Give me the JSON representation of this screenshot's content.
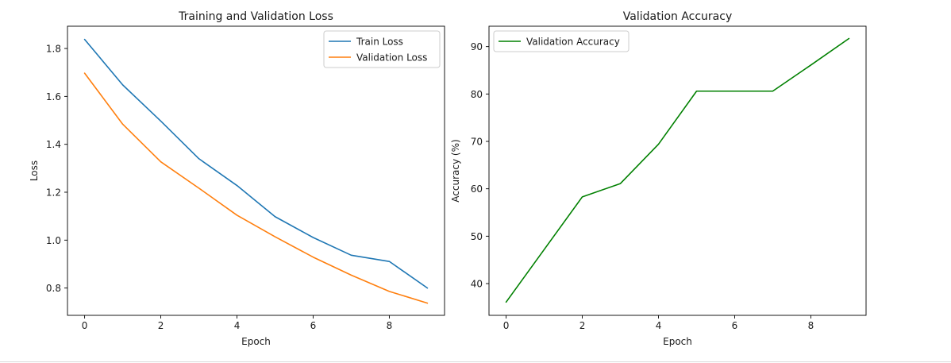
{
  "chart_data": [
    {
      "type": "line",
      "title": "Training and Validation Loss",
      "xlabel": "Epoch",
      "ylabel": "Loss",
      "xlim": [
        -0.45,
        9.45
      ],
      "ylim": [
        0.686,
        1.893
      ],
      "xticks": [
        0,
        2,
        4,
        6,
        8
      ],
      "yticks": [
        0.8,
        1.0,
        1.2,
        1.4,
        1.6,
        1.8
      ],
      "ytick_labels": [
        "0.8",
        "1.0",
        "1.2",
        "1.4",
        "1.6",
        "1.8"
      ],
      "grid": false,
      "legend": "top-right",
      "x": [
        0,
        1,
        2,
        3,
        4,
        5,
        6,
        7,
        8,
        9
      ],
      "series": [
        {
          "name": "Train Loss",
          "color": "#1f77b4",
          "values": [
            1.838,
            1.648,
            1.497,
            1.34,
            1.228,
            1.098,
            1.011,
            0.937,
            0.911,
            0.8
          ]
        },
        {
          "name": "Validation Loss",
          "color": "#ff7f0e",
          "values": [
            1.697,
            1.484,
            1.327,
            1.217,
            1.104,
            1.014,
            0.929,
            0.854,
            0.786,
            0.737
          ]
        }
      ]
    },
    {
      "type": "line",
      "title": "Validation Accuracy",
      "xlabel": "Epoch",
      "ylabel": "Accuracy (%)",
      "xlim": [
        -0.45,
        9.45
      ],
      "ylim": [
        33.3,
        94.3
      ],
      "xticks": [
        0,
        2,
        4,
        6,
        8
      ],
      "yticks": [
        40,
        50,
        60,
        70,
        80,
        90
      ],
      "ytick_labels": [
        "40",
        "50",
        "60",
        "70",
        "80",
        "90"
      ],
      "grid": false,
      "legend": "top-left",
      "x": [
        0,
        1,
        2,
        3,
        4,
        5,
        6,
        7,
        8,
        9
      ],
      "series": [
        {
          "name": "Validation Accuracy",
          "color": "#008000",
          "values": [
            36.1,
            47.2,
            58.3,
            61.1,
            69.4,
            80.6,
            80.6,
            80.6,
            86.1,
            91.7
          ]
        }
      ]
    }
  ]
}
